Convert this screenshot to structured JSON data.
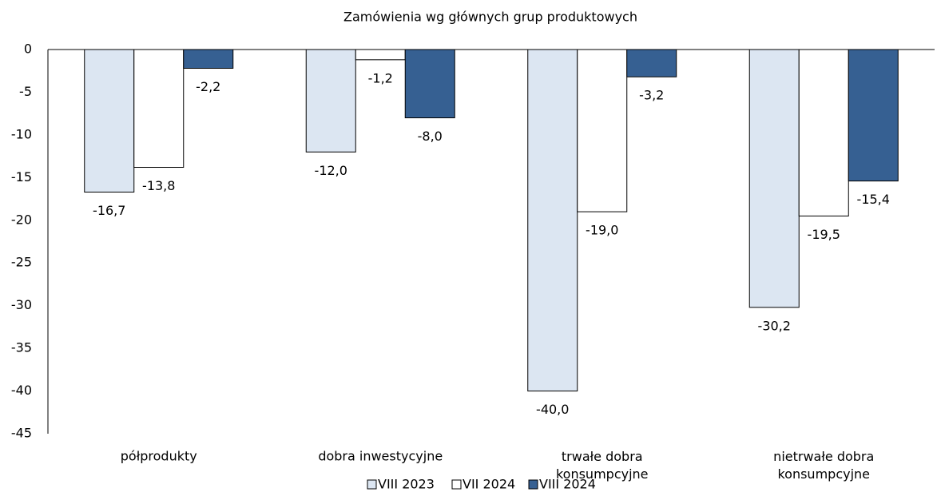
{
  "chart_data": {
    "type": "bar",
    "title": "Zamówienia wg głównych grup produktowych",
    "categories": [
      "półprodukty",
      "dobra inwestycyjne",
      "trwałe dobra konsumpcyjne",
      "nietrwałe dobra konsumpcyjne"
    ],
    "series": [
      {
        "name": "VIII 2023",
        "color": "#dce6f2",
        "values": [
          -16.7,
          -12.0,
          -40.0,
          -30.2
        ],
        "value_labels": [
          "-16,7",
          "-12,0",
          "-40,0",
          "-30,2"
        ]
      },
      {
        "name": "VII 2024",
        "color": "#ffffff",
        "values": [
          -13.8,
          -1.2,
          -19.0,
          -19.5
        ],
        "value_labels": [
          "-13,8",
          "-1,2",
          "-19,0",
          "-19,5"
        ]
      },
      {
        "name": "VIII 2024",
        "color": "#366092",
        "values": [
          -2.2,
          -8.0,
          -3.2,
          -15.4
        ],
        "value_labels": [
          "-2,2",
          "-8,0",
          "-3,2",
          "-15,4"
        ]
      }
    ],
    "ylim": [
      -45,
      0
    ],
    "yticks": [
      0,
      -5,
      -10,
      -15,
      -20,
      -25,
      -30,
      -35,
      -40,
      -45
    ],
    "grid": false,
    "legend": "bottom"
  }
}
